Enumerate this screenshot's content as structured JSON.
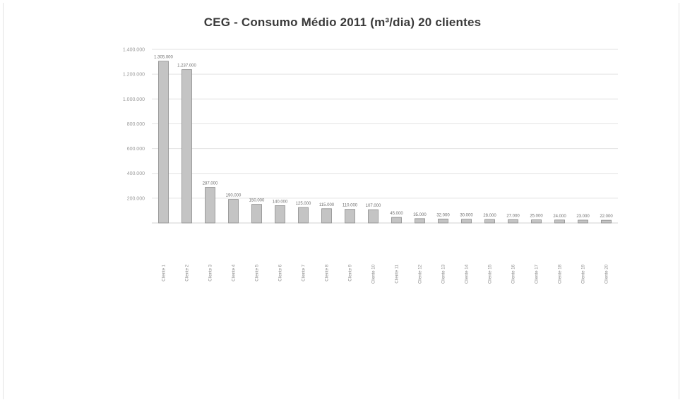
{
  "chart_data": {
    "type": "bar",
    "title": "CEG - Consumo Médio 2011 (m³/dia) 20 clientes",
    "xlabel": "",
    "ylabel": "",
    "ylim": [
      0,
      1400000
    ],
    "yticks": [
      "1.400.000",
      "1.200.000",
      "1.000.000",
      "800.000",
      "600.000",
      "400.000",
      "200.000"
    ],
    "ytick_values": [
      1400000,
      1200000,
      1000000,
      800000,
      600000,
      400000,
      200000
    ],
    "categories": [
      "Cliente 1",
      "Cliente 2",
      "Cliente 3",
      "Cliente 4",
      "Cliente 5",
      "Cliente 6",
      "Cliente 7",
      "Cliente 8",
      "Cliente 9",
      "Cliente 10",
      "Cliente 11",
      "Cliente 12",
      "Cliente 13",
      "Cliente 14",
      "Cliente 15",
      "Cliente 16",
      "Cliente 17",
      "Cliente 18",
      "Cliente 19",
      "Cliente 20"
    ],
    "values": [
      1305000,
      1237000,
      287000,
      190000,
      150000,
      140000,
      125000,
      115000,
      110000,
      107000,
      45000,
      35000,
      32000,
      30000,
      28000,
      27000,
      25000,
      24000,
      23000,
      22000
    ],
    "data_labels": [
      "1.305.000",
      "1.237.000",
      "287.000",
      "190.000",
      "150.000",
      "140.000",
      "125.000",
      "115.000",
      "110.000",
      "107.000",
      "45.000",
      "35.000",
      "32.000",
      "30.000",
      "28.000",
      "27.000",
      "25.000",
      "24.000",
      "23.000",
      "22.000"
    ],
    "grid": true,
    "legend": "none",
    "colors": {
      "bar": "#c4c4c4",
      "bar_edge": "#8c8c8c",
      "grid": "#e2e2e2",
      "text": "#3a3a3a"
    }
  }
}
